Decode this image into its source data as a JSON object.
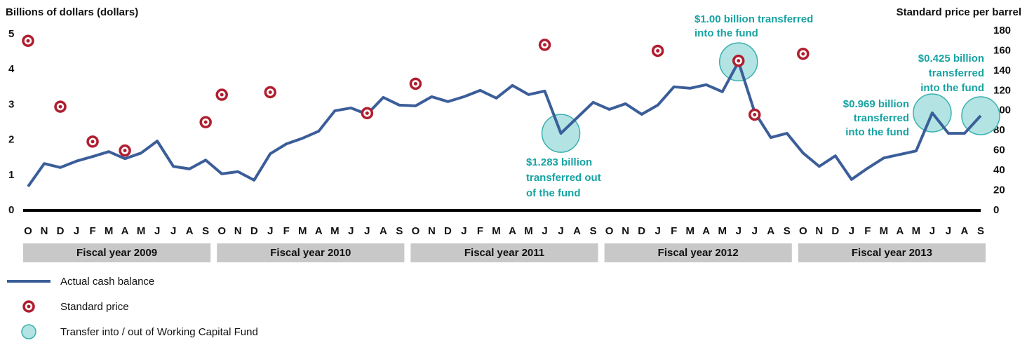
{
  "chart_data": {
    "type": "line",
    "y_label": "Billions of dollars (dollars)",
    "y2_label": "Standard price per barrel",
    "categories": [
      "O",
      "N",
      "D",
      "J",
      "F",
      "M",
      "A",
      "M",
      "J",
      "J",
      "A",
      "S",
      "O",
      "N",
      "D",
      "J",
      "F",
      "M",
      "A",
      "M",
      "J",
      "J",
      "A",
      "S",
      "O",
      "N",
      "D",
      "J",
      "F",
      "M",
      "A",
      "M",
      "J",
      "J",
      "A",
      "S",
      "O",
      "N",
      "D",
      "J",
      "F",
      "M",
      "A",
      "M",
      "J",
      "J",
      "A",
      "S",
      "O",
      "N",
      "D",
      "J",
      "F",
      "M",
      "A",
      "M",
      "J",
      "J",
      "A",
      "S"
    ],
    "fiscal_years": [
      "Fiscal year 2009",
      "Fiscal year 2010",
      "Fiscal year 2011",
      "Fiscal year 2012",
      "Fiscal year 2013"
    ],
    "series": [
      {
        "name": "Actual cash balance",
        "color": "#3b5e99",
        "values": [
          0.68,
          1.33,
          1.22,
          1.4,
          1.53,
          1.67,
          1.47,
          1.63,
          1.97,
          1.25,
          1.18,
          1.43,
          1.04,
          1.1,
          0.86,
          1.61,
          1.89,
          2.05,
          2.25,
          2.83,
          2.91,
          2.73,
          3.21,
          2.99,
          2.97,
          3.23,
          3.09,
          3.23,
          3.41,
          3.19,
          3.55,
          3.29,
          3.39,
          2.19,
          2.63,
          3.07,
          2.87,
          3.03,
          2.73,
          2.99,
          3.51,
          3.47,
          3.57,
          3.37,
          4.22,
          2.79,
          2.07,
          2.19,
          1.63,
          1.25,
          1.55,
          0.88,
          1.2,
          1.49,
          1.59,
          1.69,
          2.77,
          2.19,
          2.19,
          2.69
        ]
      },
      {
        "name": "Standard price",
        "color": "#b01e2f",
        "axis": "y2",
        "values": [
          170,
          null,
          104,
          null,
          69,
          null,
          60,
          null,
          null,
          null,
          null,
          88.5,
          116,
          null,
          null,
          118.5,
          null,
          null,
          null,
          null,
          null,
          97.5,
          null,
          null,
          127,
          null,
          null,
          null,
          null,
          null,
          null,
          null,
          166,
          null,
          null,
          null,
          null,
          null,
          null,
          160,
          null,
          null,
          null,
          null,
          150,
          96,
          null,
          null,
          157,
          null,
          null,
          null,
          null,
          null,
          null,
          null,
          null,
          null,
          null,
          null
        ]
      }
    ],
    "transfer_legend": "Transfer into / out of Working Capital Fund",
    "transfer_color": "#b3e3e3",
    "annotations": [
      {
        "at": 33,
        "lines": [
          "$1.283 billion",
          "transferred out",
          "of the fund"
        ]
      },
      {
        "at": 44,
        "lines": [
          "$1.00 billion transferred",
          "into the fund"
        ]
      },
      {
        "at": 59,
        "lines": [
          "$0.425 billion",
          "transferred",
          "into the fund"
        ]
      },
      {
        "at": 56,
        "lines": [
          "$0.969 billion",
          "transferred",
          "into the fund"
        ]
      }
    ],
    "ylim": [
      0,
      5.1
    ],
    "yticks": [
      0,
      1,
      2,
      3,
      4,
      5
    ],
    "y2lim": [
      0,
      180
    ],
    "y2ticks": [
      0,
      20,
      40,
      60,
      80,
      100,
      120,
      140,
      160,
      180
    ],
    "grid": false
  }
}
